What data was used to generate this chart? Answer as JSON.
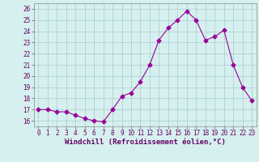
{
  "x": [
    0,
    1,
    2,
    3,
    4,
    5,
    6,
    7,
    8,
    9,
    10,
    11,
    12,
    13,
    14,
    15,
    16,
    17,
    18,
    19,
    20,
    21,
    22,
    23
  ],
  "y": [
    17.0,
    17.0,
    16.8,
    16.8,
    16.5,
    16.2,
    16.0,
    15.9,
    17.0,
    18.2,
    18.5,
    19.5,
    21.0,
    23.2,
    24.3,
    25.0,
    25.8,
    25.0,
    23.2,
    23.5,
    24.1,
    21.0,
    19.0,
    17.8
  ],
  "line_color": "#990099",
  "marker": "D",
  "marker_size": 2.5,
  "bg_color": "#d6f0f0",
  "grid_color": "#aacccc",
  "xlabel": "Windchill (Refroidissement éolien,°C)",
  "xlim": [
    -0.5,
    23.5
  ],
  "ylim": [
    15.5,
    26.5
  ],
  "yticks": [
    16,
    17,
    18,
    19,
    20,
    21,
    22,
    23,
    24,
    25,
    26
  ],
  "xticks": [
    0,
    1,
    2,
    3,
    4,
    5,
    6,
    7,
    8,
    9,
    10,
    11,
    12,
    13,
    14,
    15,
    16,
    17,
    18,
    19,
    20,
    21,
    22,
    23
  ],
  "tick_label_fontsize": 5.5,
  "xlabel_fontsize": 6.5,
  "axis_label_color": "#660066",
  "spine_color": "#888888"
}
